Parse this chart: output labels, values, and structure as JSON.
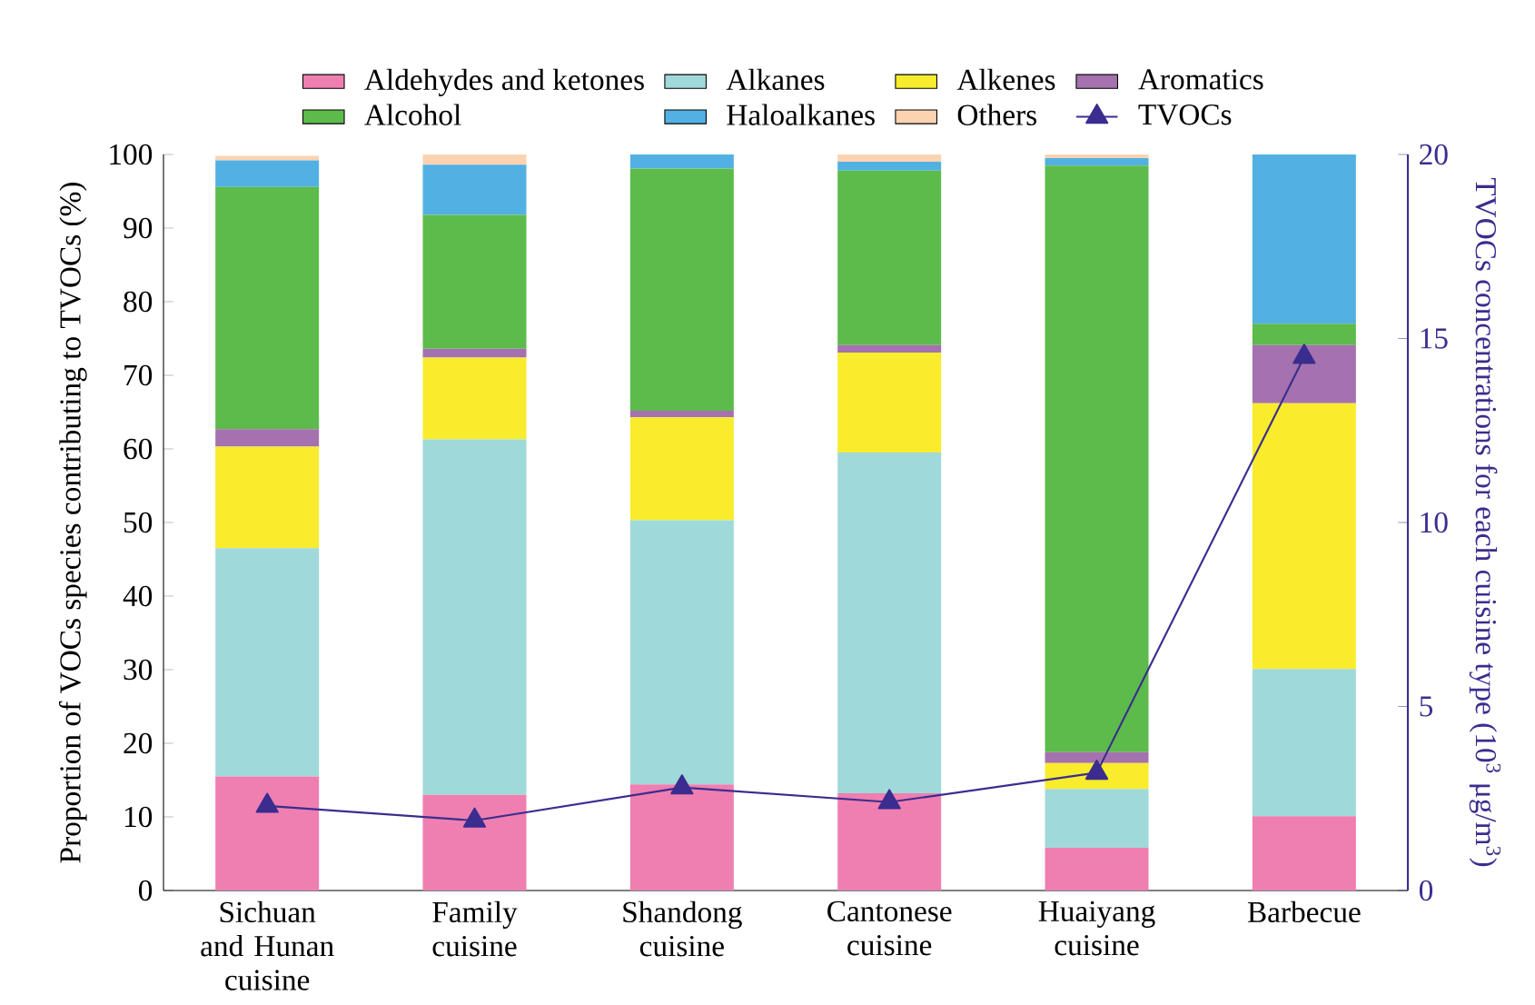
{
  "chart_data": {
    "type": "bar",
    "stacked": true,
    "legend": "top",
    "categories": [
      "Sichuan and Hunan cuisine",
      "Family cuisine",
      "Shandong cuisine",
      "Cantonese cuisine",
      "Huaiyang cuisine",
      "Barbecue"
    ],
    "ylabel": "Proportion of VOCs species contributing to TVOCs (%)",
    "y2label": "TVOCs concentrations for each cuisine type (10$^{3}$ μg/m$^{3}$)",
    "ylim": [
      0,
      100
    ],
    "yticks": [
      0,
      10,
      20,
      30,
      40,
      50,
      60,
      70,
      80,
      90,
      100
    ],
    "y2lim": [
      0,
      20
    ],
    "y2ticks": [
      0,
      5,
      10,
      15,
      20
    ],
    "series": [
      {
        "name": "Aldehydes and ketones",
        "color": "#ef7fb0",
        "values": [
          15.5,
          13.0,
          14.4,
          13.2,
          5.8,
          10.1
        ]
      },
      {
        "name": "Alkanes",
        "color": "#a0d9da",
        "values": [
          31.0,
          48.3,
          35.9,
          46.3,
          8.0,
          20.0
        ]
      },
      {
        "name": "Alkenes",
        "color": "#f8ec2d",
        "values": [
          13.8,
          11.1,
          14.0,
          13.6,
          3.5,
          36.1
        ]
      },
      {
        "name": "Aromatics",
        "color": "#a571ae",
        "values": [
          2.4,
          1.2,
          0.9,
          1.0,
          1.5,
          7.9
        ]
      },
      {
        "name": "Alcohol",
        "color": "#5cbb4b",
        "values": [
          32.9,
          18.2,
          32.9,
          23.7,
          79.7,
          2.9
        ]
      },
      {
        "name": "Haloalkanes",
        "color": "#52b1e2",
        "values": [
          3.6,
          6.8,
          1.9,
          1.2,
          1.0,
          23.0
        ]
      },
      {
        "name": "Others",
        "color": "#fbd3b1",
        "values": [
          0.6,
          1.4,
          0,
          1.0,
          0.5,
          0
        ]
      },
      {
        "name": "TVOCs",
        "type": "line",
        "axis": "y2",
        "marker": "triangle",
        "color": "#3a2d8f",
        "values": [
          2.3,
          1.9,
          2.8,
          2.4,
          3.2,
          14.5
        ]
      }
    ]
  }
}
